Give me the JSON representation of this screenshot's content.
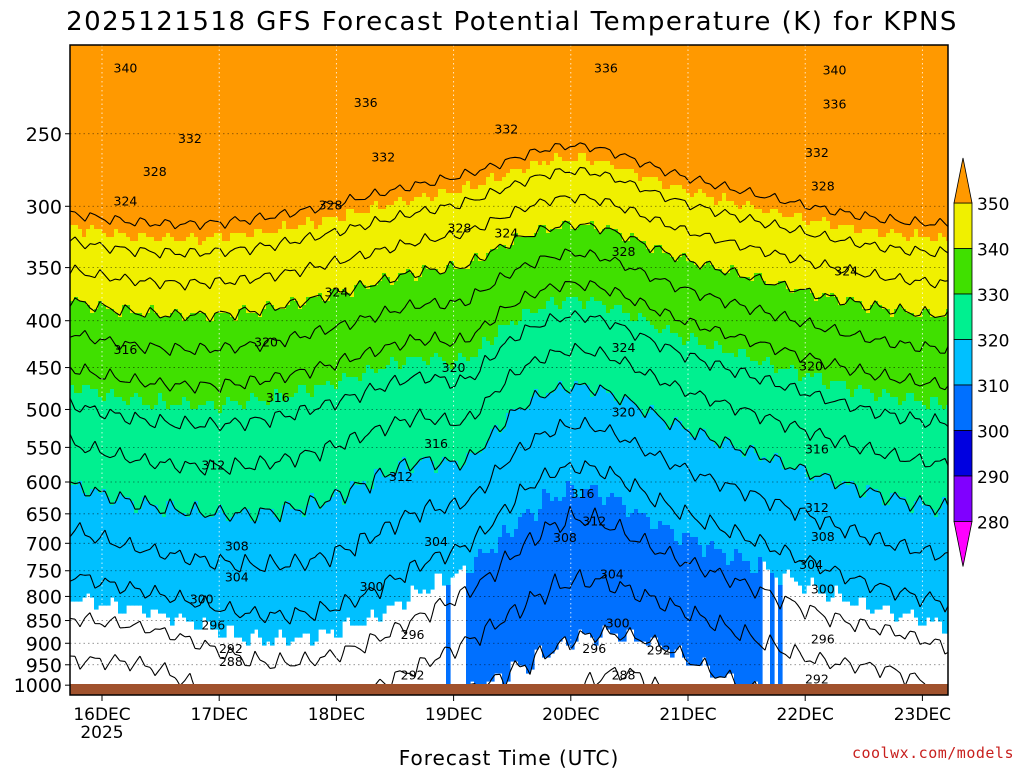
{
  "title": "2025121518 GFS Forecast Potential Temperature (K) for KPNS",
  "xlabel": "Forecast Time (UTC)",
  "brand": "coolwx.com/models",
  "colors": {
    "below_280": "#ff00ff",
    "b280_290": "#8000ff",
    "b290_300": "#0000e0",
    "b300_310": "#0070ff",
    "b310_320": "#00c0ff",
    "b320_330": "#00f090",
    "b330_340": "#40e000",
    "b340_350": "#f0f000",
    "above_350": "#ff9900",
    "ground": "#a0522d",
    "contour": "#000000"
  },
  "chart_data": {
    "type": "heatmap",
    "title": "2025121518 GFS Forecast Potential Temperature (K) for KPNS",
    "xlabel": "Forecast Time (UTC)",
    "ylabel": "",
    "x_ticks": [
      "16DEC",
      "17DEC",
      "18DEC",
      "19DEC",
      "20DEC",
      "21DEC",
      "22DEC",
      "23DEC"
    ],
    "x_ticks_days": [
      0,
      1,
      2,
      3,
      4,
      5,
      6,
      7
    ],
    "x_start_label": "16DEC 2025",
    "year_label": "2025",
    "xlim_days": [
      -0.12,
      7.25
    ],
    "y_ticks": [
      250,
      300,
      350,
      400,
      450,
      500,
      550,
      600,
      650,
      700,
      750,
      800,
      850,
      900,
      950,
      1000
    ],
    "ylim_hpa": [
      200,
      1025
    ],
    "y_scale": "log",
    "colorbar_levels": [
      280,
      290,
      300,
      310,
      320,
      330,
      340,
      350
    ],
    "colorbar_labels": [
      "280",
      "290",
      "300",
      "310",
      "320",
      "330",
      "340",
      "350"
    ],
    "colorbar_ext": "both",
    "contour_interval_K": 4,
    "grid": true,
    "contour_labels": [
      {
        "value": 340,
        "text": "340",
        "day": 0.2,
        "p": 212
      },
      {
        "value": 336,
        "text": "336",
        "day": 2.25,
        "p": 231
      },
      {
        "value": 336,
        "text": "336",
        "day": 4.3,
        "p": 212
      },
      {
        "value": 340,
        "text": "340",
        "day": 6.25,
        "p": 213
      },
      {
        "value": 336,
        "text": "336",
        "day": 6.25,
        "p": 232
      },
      {
        "value": 332,
        "text": "332",
        "day": 0.75,
        "p": 253
      },
      {
        "value": 332,
        "text": "332",
        "day": 2.4,
        "p": 265
      },
      {
        "value": 332,
        "text": "332",
        "day": 3.45,
        "p": 247
      },
      {
        "value": 332,
        "text": "332",
        "day": 6.1,
        "p": 262
      },
      {
        "value": 328,
        "text": "328",
        "day": 0.45,
        "p": 275
      },
      {
        "value": 328,
        "text": "328",
        "day": 1.95,
        "p": 299
      },
      {
        "value": 328,
        "text": "328",
        "day": 3.05,
        "p": 317
      },
      {
        "value": 328,
        "text": "328",
        "day": 4.45,
        "p": 336
      },
      {
        "value": 328,
        "text": "328",
        "day": 6.15,
        "p": 285
      },
      {
        "value": 324,
        "text": "324",
        "day": 0.2,
        "p": 296
      },
      {
        "value": 324,
        "text": "324",
        "day": 3.45,
        "p": 321
      },
      {
        "value": 324,
        "text": "324",
        "day": 2.0,
        "p": 372
      },
      {
        "value": 324,
        "text": "324",
        "day": 4.45,
        "p": 428
      },
      {
        "value": 324,
        "text": "324",
        "day": 6.35,
        "p": 353
      },
      {
        "value": 316,
        "text": "316",
        "day": 0.2,
        "p": 430
      },
      {
        "value": 320,
        "text": "320",
        "day": 1.4,
        "p": 422
      },
      {
        "value": 316,
        "text": "316",
        "day": 1.5,
        "p": 485
      },
      {
        "value": 320,
        "text": "320",
        "day": 3.0,
        "p": 450
      },
      {
        "value": 316,
        "text": "316",
        "day": 2.85,
        "p": 545
      },
      {
        "value": 320,
        "text": "320",
        "day": 4.45,
        "p": 503
      },
      {
        "value": 320,
        "text": "320",
        "day": 6.05,
        "p": 448
      },
      {
        "value": 312,
        "text": "312",
        "day": 0.95,
        "p": 575
      },
      {
        "value": 312,
        "text": "312",
        "day": 2.55,
        "p": 592
      },
      {
        "value": 316,
        "text": "316",
        "day": 4.1,
        "p": 618
      },
      {
        "value": 316,
        "text": "316",
        "day": 6.1,
        "p": 552
      },
      {
        "value": 312,
        "text": "312",
        "day": 4.2,
        "p": 662
      },
      {
        "value": 312,
        "text": "312",
        "day": 6.1,
        "p": 640
      },
      {
        "value": 308,
        "text": "308",
        "day": 1.15,
        "p": 705
      },
      {
        "value": 308,
        "text": "308",
        "day": 3.95,
        "p": 690
      },
      {
        "value": 308,
        "text": "308",
        "day": 6.15,
        "p": 688
      },
      {
        "value": 304,
        "text": "304",
        "day": 1.15,
        "p": 762
      },
      {
        "value": 304,
        "text": "304",
        "day": 2.85,
        "p": 697
      },
      {
        "value": 304,
        "text": "304",
        "day": 4.35,
        "p": 756
      },
      {
        "value": 304,
        "text": "304",
        "day": 6.05,
        "p": 738
      },
      {
        "value": 300,
        "text": "300",
        "day": 0.85,
        "p": 805
      },
      {
        "value": 300,
        "text": "300",
        "day": 2.3,
        "p": 780
      },
      {
        "value": 300,
        "text": "300",
        "day": 4.4,
        "p": 855
      },
      {
        "value": 300,
        "text": "300",
        "day": 6.15,
        "p": 785
      },
      {
        "value": 296,
        "text": "296",
        "day": 0.95,
        "p": 860
      },
      {
        "value": 296,
        "text": "296",
        "day": 2.65,
        "p": 880
      },
      {
        "value": 296,
        "text": "296",
        "day": 4.2,
        "p": 912
      },
      {
        "value": 296,
        "text": "296",
        "day": 6.15,
        "p": 890
      },
      {
        "value": 292,
        "text": "292",
        "day": 1.1,
        "p": 912
      },
      {
        "value": 292,
        "text": "292",
        "day": 2.65,
        "p": 975
      },
      {
        "value": 292,
        "text": "292",
        "day": 4.75,
        "p": 915
      },
      {
        "value": 292,
        "text": "292",
        "day": 6.1,
        "p": 985
      },
      {
        "value": 288,
        "text": "288",
        "day": 1.1,
        "p": 942
      },
      {
        "value": 288,
        "text": "288",
        "day": 4.45,
        "p": 975
      }
    ]
  }
}
